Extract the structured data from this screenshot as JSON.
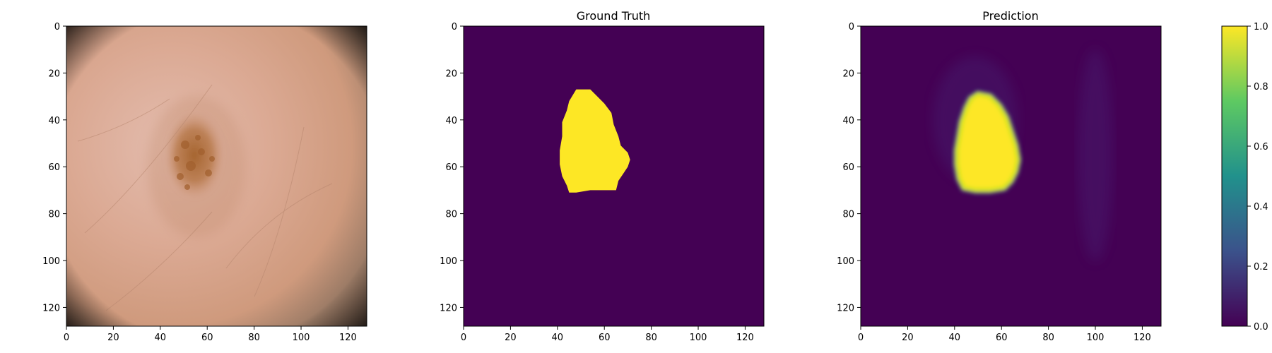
{
  "chart_data": [
    {
      "type": "image",
      "title": "",
      "image": "dermoscopy skin image with brown lesion",
      "x_ticks": [
        0,
        20,
        40,
        60,
        80,
        100,
        120
      ],
      "y_ticks": [
        0,
        20,
        40,
        60,
        80,
        100,
        120
      ],
      "xlim": [
        0,
        128
      ],
      "ylim": [
        128,
        0
      ]
    },
    {
      "type": "heatmap",
      "title": "Ground Truth",
      "colormap": "viridis",
      "x_ticks": [
        0,
        20,
        40,
        60,
        80,
        100,
        120
      ],
      "y_ticks": [
        0,
        20,
        40,
        60,
        80,
        100,
        120
      ],
      "xlim": [
        0,
        128
      ],
      "ylim": [
        128,
        0
      ],
      "mask_outline": [
        [
          48,
          27
        ],
        [
          54,
          27
        ],
        [
          57,
          30
        ],
        [
          60,
          33
        ],
        [
          63,
          37
        ],
        [
          64,
          42
        ],
        [
          66,
          47
        ],
        [
          67,
          51
        ],
        [
          70,
          54
        ],
        [
          71,
          57
        ],
        [
          70,
          60
        ],
        [
          68,
          63
        ],
        [
          66,
          66
        ],
        [
          65,
          70
        ],
        [
          62,
          70
        ],
        [
          54,
          70
        ],
        [
          48,
          71
        ],
        [
          45,
          71
        ],
        [
          44,
          68
        ],
        [
          42,
          64
        ],
        [
          41,
          59
        ],
        [
          41,
          53
        ],
        [
          42,
          47
        ],
        [
          42,
          41
        ],
        [
          44,
          36
        ],
        [
          45,
          32
        ]
      ]
    },
    {
      "type": "heatmap",
      "title": "Prediction",
      "colormap": "viridis",
      "x_ticks": [
        0,
        20,
        40,
        60,
        80,
        100,
        120
      ],
      "y_ticks": [
        0,
        20,
        40,
        60,
        80,
        100,
        120
      ],
      "xlim": [
        0,
        128
      ],
      "ylim": [
        128,
        0
      ],
      "mask_outline": [
        [
          50,
          29
        ],
        [
          55,
          30
        ],
        [
          59,
          34
        ],
        [
          62,
          39
        ],
        [
          64,
          45
        ],
        [
          66,
          51
        ],
        [
          67,
          57
        ],
        [
          66,
          62
        ],
        [
          64,
          66
        ],
        [
          61,
          69
        ],
        [
          55,
          70
        ],
        [
          49,
          70
        ],
        [
          44,
          69
        ],
        [
          42,
          65
        ],
        [
          41,
          59
        ],
        [
          41,
          53
        ],
        [
          42,
          47
        ],
        [
          43,
          41
        ],
        [
          45,
          35
        ],
        [
          47,
          31
        ]
      ]
    }
  ],
  "colorbar": {
    "colormap": "viridis",
    "range": [
      0.0,
      1.0
    ],
    "ticks": [
      "0.0",
      "0.2",
      "0.4",
      "0.6",
      "0.8",
      "1.0"
    ]
  },
  "colors": {
    "viridis_0": "#440154",
    "viridis_25": "#3b528b",
    "viridis_50": "#21918c",
    "viridis_75": "#5ec962",
    "viridis_100": "#fde725",
    "skin": "#d9a88f",
    "lesion": "#a86a3c"
  }
}
